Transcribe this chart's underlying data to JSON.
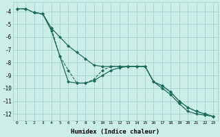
{
  "xlabel": "Humidex (Indice chaleur)",
  "bg_color": "#cceee8",
  "grid_color": "#99cccc",
  "line_color": "#1a6b5a",
  "xlim": [
    -0.5,
    23.5
  ],
  "ylim": [
    -12.5,
    -3.3
  ],
  "yticks": [
    -4,
    -5,
    -6,
    -7,
    -8,
    -9,
    -10,
    -11,
    -12
  ],
  "xticks": [
    0,
    1,
    2,
    3,
    4,
    5,
    6,
    7,
    8,
    9,
    10,
    11,
    12,
    13,
    14,
    15,
    16,
    17,
    18,
    19,
    20,
    21,
    22,
    23
  ],
  "series": [
    {
      "x": [
        0,
        1,
        2,
        3,
        4,
        5,
        6,
        7,
        8,
        9,
        10,
        11,
        12,
        13,
        14,
        15,
        16,
        17,
        18,
        19,
        20,
        21,
        22,
        23
      ],
      "y": [
        -3.8,
        -3.8,
        -4.1,
        -4.2,
        -5.3,
        -6.0,
        -6.7,
        -7.2,
        -7.7,
        -8.2,
        -8.3,
        -8.3,
        -8.3,
        -8.3,
        -8.3,
        -8.3,
        -9.5,
        -10.0,
        -10.5,
        -11.2,
        -11.8,
        -12.0,
        -12.1,
        -12.2
      ],
      "ls": "-",
      "lw": 0.9
    },
    {
      "x": [
        0,
        1,
        2,
        3,
        4,
        5,
        6,
        7,
        8,
        9,
        10,
        11,
        12,
        13,
        14,
        15,
        16,
        17,
        18,
        19,
        20,
        21,
        22,
        23
      ],
      "y": [
        -3.8,
        -3.8,
        -4.1,
        -4.2,
        -5.3,
        -7.5,
        -8.6,
        -9.6,
        -9.6,
        -9.3,
        -8.6,
        -8.3,
        -8.3,
        -8.3,
        -8.3,
        -8.3,
        -9.5,
        -9.8,
        -10.3,
        -11.0,
        -11.5,
        -11.8,
        -12.0,
        -12.2
      ],
      "ls": "--",
      "lw": 0.8
    },
    {
      "x": [
        2,
        3,
        4,
        5,
        6,
        7,
        8,
        9,
        10,
        11,
        12,
        13,
        14,
        15,
        16,
        17,
        18,
        19,
        20,
        21,
        22,
        23
      ],
      "y": [
        -4.1,
        -4.2,
        -5.5,
        -7.5,
        -9.5,
        -9.6,
        -9.6,
        -9.4,
        -9.0,
        -8.6,
        -8.4,
        -8.3,
        -8.3,
        -8.3,
        -9.5,
        -9.8,
        -10.3,
        -11.0,
        -11.5,
        -11.8,
        -12.0,
        -12.2
      ],
      "ls": "-",
      "lw": 0.9
    }
  ]
}
